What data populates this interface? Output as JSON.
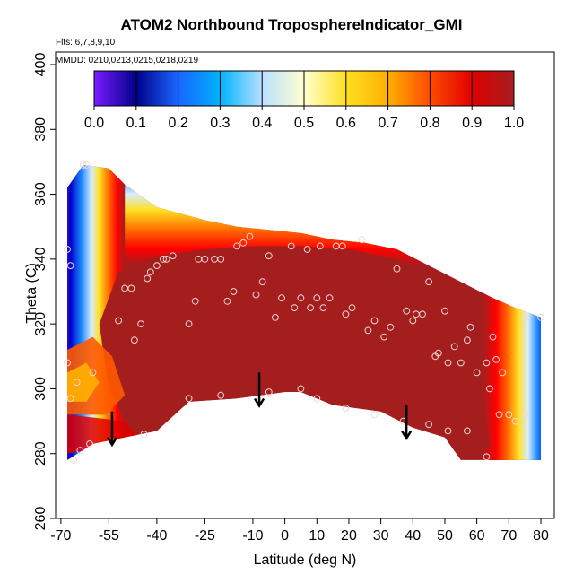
{
  "title": "ATOM2 Northbound TroposphereIndicator_GMI",
  "flights_label": "Flts: 6,7,8,9,10",
  "mmdd_label": "MMDD: 0210,0213,0215,0218,0219",
  "chart_data": {
    "type": "heatmap",
    "title": "ATOM2 Northbound TroposphereIndicator_GMI",
    "xlabel": "Latitude (deg N)",
    "ylabel": "Theta (C)",
    "xlim": [
      -70,
      82
    ],
    "ylim": [
      260,
      405
    ],
    "xticks": [
      -70,
      -55,
      -40,
      -25,
      -10,
      0,
      10,
      20,
      30,
      40,
      50,
      60,
      70,
      80
    ],
    "yticks": [
      260,
      280,
      300,
      320,
      340,
      360,
      380,
      400
    ],
    "colorbar": {
      "min": 0.0,
      "max": 1.0,
      "ticks": [
        "0.0",
        "0.1",
        "0.2",
        "0.3",
        "0.4",
        "0.5",
        "0.6",
        "0.7",
        "0.8",
        "0.9",
        "1.0"
      ]
    },
    "colors": [
      "#7a1cff",
      "#00008b",
      "#1a66ff",
      "#00b2ff",
      "#cfe8ff",
      "#ffffd0",
      "#ffe020",
      "#ff9900",
      "#ff0000",
      "#a41e1e"
    ],
    "data_top_profile": [
      [
        -68,
        362
      ],
      [
        -63,
        369
      ],
      [
        -55,
        368
      ],
      [
        -50,
        363
      ],
      [
        -40,
        356
      ],
      [
        -25,
        352
      ],
      [
        -15,
        350
      ],
      [
        -5,
        349
      ],
      [
        5,
        348
      ],
      [
        15,
        346
      ],
      [
        25,
        345
      ],
      [
        35,
        343
      ],
      [
        45,
        338
      ],
      [
        55,
        333
      ],
      [
        65,
        328
      ],
      [
        72,
        325
      ],
      [
        80,
        322
      ]
    ],
    "data_bottom_profile": [
      [
        -68,
        278
      ],
      [
        -60,
        283
      ],
      [
        -50,
        285
      ],
      [
        -40,
        287
      ],
      [
        -30,
        296
      ],
      [
        -15,
        297
      ],
      [
        0,
        299
      ],
      [
        5,
        299
      ],
      [
        15,
        295
      ],
      [
        30,
        293
      ],
      [
        40,
        288
      ],
      [
        50,
        285
      ],
      [
        55,
        278
      ],
      [
        80,
        278
      ]
    ],
    "tropopause_arrows": [
      [
        -54,
        289
      ],
      [
        -8,
        301
      ],
      [
        38,
        291
      ]
    ],
    "sample_points": [
      [
        -68,
        343
      ],
      [
        -67,
        338
      ],
      [
        -63,
        369
      ],
      [
        -62,
        369
      ],
      [
        -52,
        321
      ],
      [
        -50,
        331
      ],
      [
        -48,
        331
      ],
      [
        -47,
        315
      ],
      [
        -45,
        320
      ],
      [
        -43,
        334
      ],
      [
        -42,
        336
      ],
      [
        -40,
        338
      ],
      [
        -38,
        340
      ],
      [
        -37,
        340
      ],
      [
        -35,
        341
      ],
      [
        -30,
        320
      ],
      [
        -28,
        327
      ],
      [
        -27,
        340
      ],
      [
        -25,
        340
      ],
      [
        -22,
        340
      ],
      [
        -20,
        340
      ],
      [
        -18,
        327
      ],
      [
        -16,
        330
      ],
      [
        -15,
        344
      ],
      [
        -13,
        345
      ],
      [
        -11,
        347
      ],
      [
        -9,
        329
      ],
      [
        -7,
        333
      ],
      [
        -5,
        341
      ],
      [
        -3,
        322
      ],
      [
        -1,
        328
      ],
      [
        2,
        344
      ],
      [
        3,
        325
      ],
      [
        5,
        328
      ],
      [
        7,
        343
      ],
      [
        8,
        325
      ],
      [
        10,
        328
      ],
      [
        11,
        344
      ],
      [
        12,
        325
      ],
      [
        14,
        328
      ],
      [
        16,
        344
      ],
      [
        18,
        344
      ],
      [
        19,
        323
      ],
      [
        21,
        325
      ],
      [
        24,
        346
      ],
      [
        26,
        318
      ],
      [
        28,
        321
      ],
      [
        31,
        316
      ],
      [
        33,
        319
      ],
      [
        35,
        337
      ],
      [
        38,
        324
      ],
      [
        40,
        321
      ],
      [
        41,
        323
      ],
      [
        43,
        323
      ],
      [
        45,
        333
      ],
      [
        47,
        310
      ],
      [
        48,
        311
      ],
      [
        50,
        324
      ],
      [
        51,
        308
      ],
      [
        53,
        313
      ],
      [
        55,
        308
      ],
      [
        57,
        315
      ],
      [
        58,
        319
      ],
      [
        60,
        305
      ],
      [
        63,
        308
      ],
      [
        64,
        300
      ],
      [
        65,
        316
      ],
      [
        66,
        309
      ],
      [
        68,
        305
      ],
      [
        -68,
        308
      ],
      [
        -67,
        297
      ],
      [
        -66,
        278
      ],
      [
        -65,
        302
      ],
      [
        -64,
        281
      ],
      [
        -61,
        283
      ],
      [
        -60,
        305
      ],
      [
        -44,
        286
      ],
      [
        -30,
        297
      ],
      [
        -20,
        298
      ],
      [
        -5,
        299
      ],
      [
        5,
        300
      ],
      [
        10,
        297
      ],
      [
        19,
        294
      ],
      [
        28,
        292
      ],
      [
        37,
        290
      ],
      [
        45,
        289
      ],
      [
        51,
        287
      ],
      [
        57,
        287
      ],
      [
        63,
        279
      ],
      [
        67,
        292
      ],
      [
        70,
        292
      ],
      [
        72,
        290
      ],
      [
        75,
        292
      ],
      [
        80,
        322
      ],
      [
        75,
        322
      ]
    ]
  }
}
